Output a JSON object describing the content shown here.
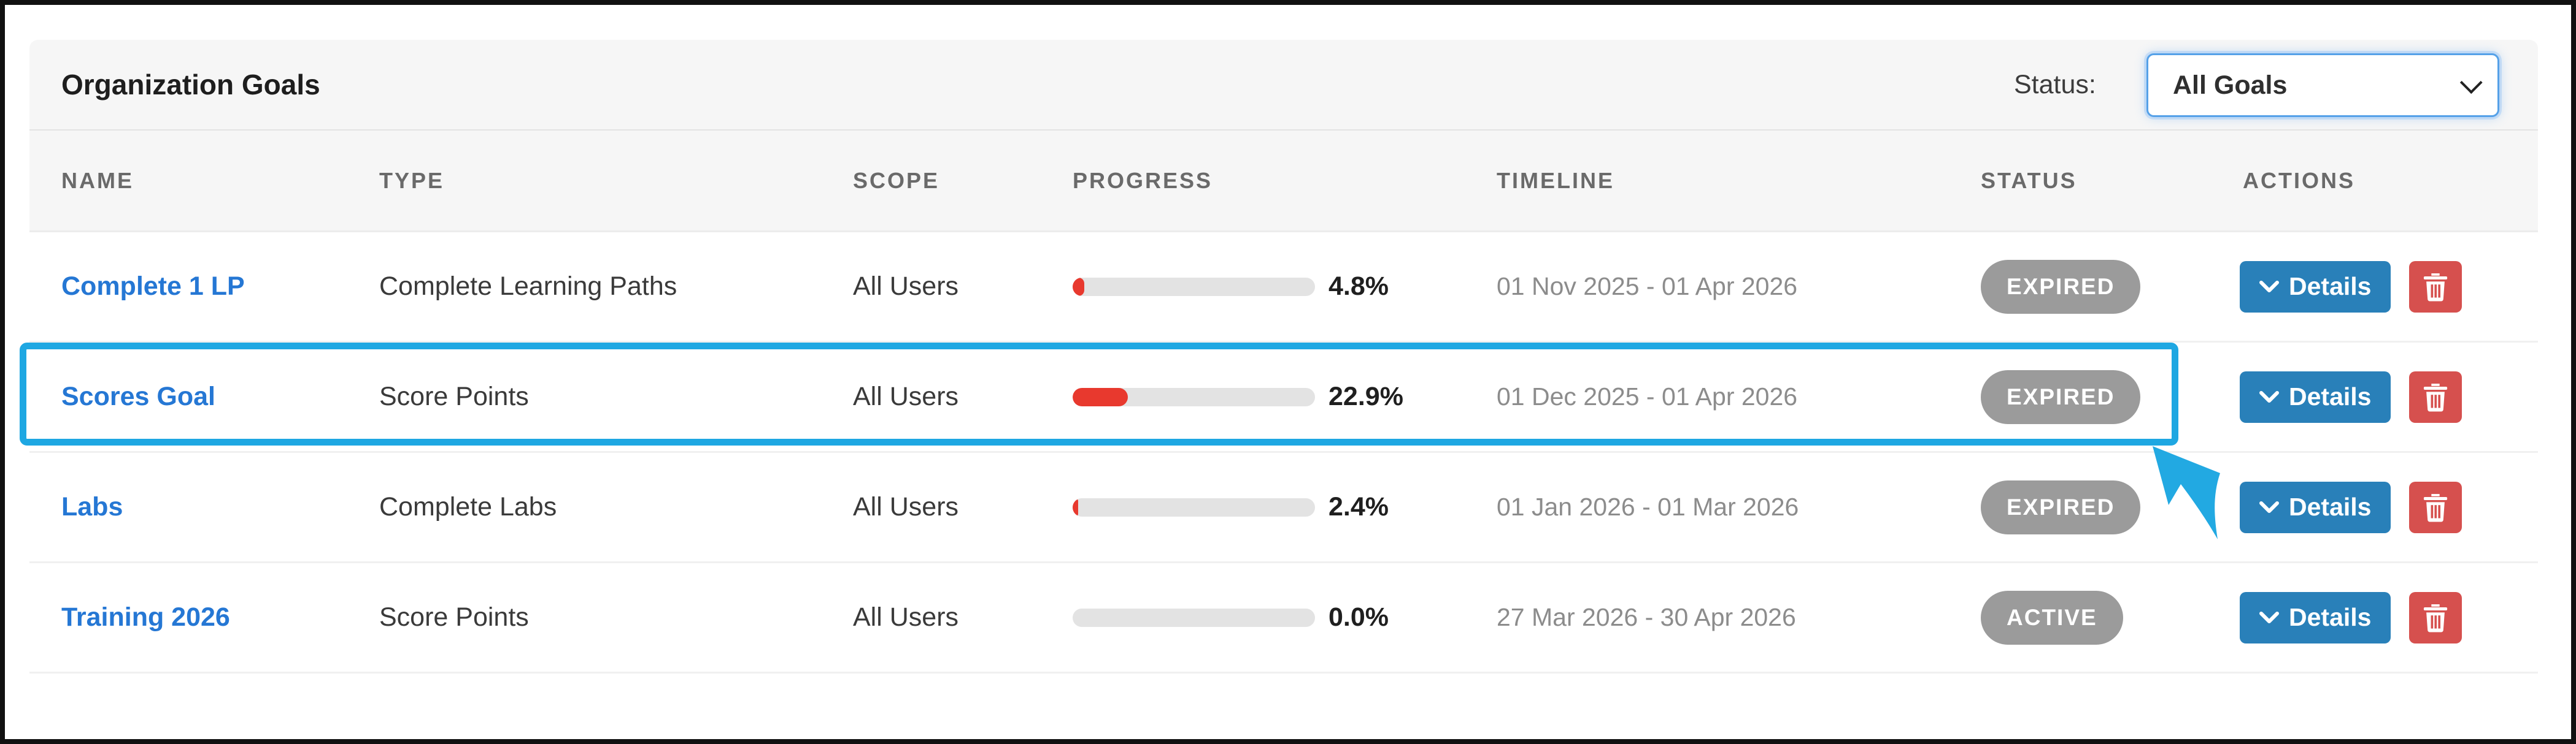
{
  "panel": {
    "title": "Organization Goals"
  },
  "filter": {
    "label": "Status:",
    "value": "All Goals",
    "chevron_icon": "chevron-down"
  },
  "columns": {
    "name": "NAME",
    "type": "TYPE",
    "scope": "SCOPE",
    "progress": "PROGRESS",
    "timeline": "TIMELINE",
    "status": "STATUS",
    "actions": "ACTIONS"
  },
  "actions": {
    "details_label": "Details"
  },
  "rows": [
    {
      "name": "Complete 1 LP",
      "type": "Complete Learning Paths",
      "scope": "All Users",
      "progress_value": 4.8,
      "progress_pct": "4.8%",
      "timeline": "01 Nov 2025 - 01 Apr 2026",
      "status": "EXPIRED",
      "highlighted": false
    },
    {
      "name": "Scores Goal",
      "type": "Score Points",
      "scope": "All Users",
      "progress_value": 22.9,
      "progress_pct": "22.9%",
      "timeline": "01 Dec 2025 - 01 Apr 2026",
      "status": "EXPIRED",
      "highlighted": true
    },
    {
      "name": "Labs",
      "type": "Complete Labs",
      "scope": "All Users",
      "progress_value": 2.4,
      "progress_pct": "2.4%",
      "timeline": "01 Jan 2026 - 01 Mar 2026",
      "status": "EXPIRED",
      "highlighted": false
    },
    {
      "name": "Training 2026",
      "type": "Score Points",
      "scope": "All Users",
      "progress_value": 0.0,
      "progress_pct": "0.0%",
      "timeline": "27 Mar 2026 - 30 Apr 2026",
      "status": "ACTIVE",
      "highlighted": false
    }
  ],
  "colors": {
    "link_blue": "#2577d4",
    "details_button_blue": "#2980b9",
    "delete_button_red": "#d6504e",
    "badge_gray": "#9b9b9b",
    "progress_red": "#e8392e",
    "progress_track": "#e3e3e3",
    "highlight_cyan": "#1ea7e2",
    "band_gray": "#f6f6f6",
    "select_focus_blue": "#55a1e8"
  }
}
